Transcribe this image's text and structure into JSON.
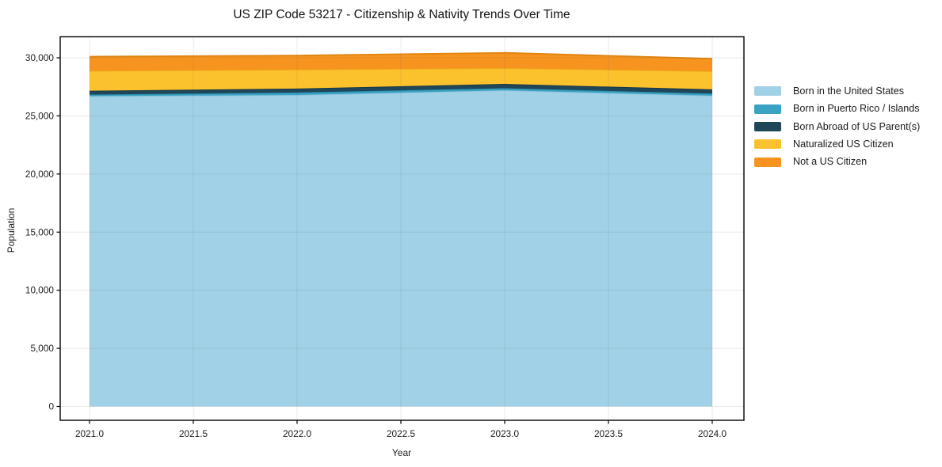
{
  "title": "US ZIP Code 53217 - Citizenship & Nativity Trends Over Time",
  "chart_data": {
    "type": "area",
    "stacked": true,
    "title": "US ZIP Code 53217 - Citizenship & Nativity Trends Over Time",
    "xlabel": "Year",
    "ylabel": "Population",
    "x": [
      2021,
      2022,
      2023,
      2024
    ],
    "xlim": [
      2020.86,
      2024.15
    ],
    "ylim": [
      0,
      31500
    ],
    "grid": true,
    "legend_position": "outside-right-top",
    "x_tick_values": [
      2021.0,
      2021.5,
      2022.0,
      2022.5,
      2023.0,
      2023.5,
      2024.0
    ],
    "x_tick_labels": [
      "2021.0",
      "2021.5",
      "2022.0",
      "2022.5",
      "2023.0",
      "2023.5",
      "2024.0"
    ],
    "y_tick_values": [
      0,
      5000,
      10000,
      15000,
      20000,
      25000,
      30000
    ],
    "y_tick_labels": [
      "0",
      "5,000",
      "10,000",
      "15,000",
      "20,000",
      "25,000",
      "30,000"
    ],
    "series": [
      {
        "name": "Born in the United States",
        "color": "#A1D1E6",
        "edge": "#8CC2DB",
        "values": [
          26700,
          26800,
          27200,
          26740
        ]
      },
      {
        "name": "Born in Puerto Rico / Islands",
        "color": "#3AA2C3",
        "edge": "#2C92B3",
        "values": [
          130,
          210,
          180,
          185
        ]
      },
      {
        "name": "Born Abroad of US Parent(s)",
        "color": "#1F4659",
        "edge": "#173849",
        "values": [
          340,
          340,
          370,
          360
        ]
      },
      {
        "name": "Naturalized US Citizen",
        "color": "#FCC22D",
        "edge": "#EBAE17",
        "values": [
          1700,
          1630,
          1360,
          1560
        ]
      },
      {
        "name": "Not a US Citizen",
        "color": "#F79420",
        "edge": "#E0830F",
        "values": [
          1230,
          1220,
          1320,
          1070
        ]
      }
    ],
    "totals": [
      30100,
      30200,
      30430,
      29915
    ]
  },
  "colors": {
    "background": "#ffffff",
    "spine": "#000000",
    "gridline": "#e9e9e9",
    "text": "#1c1c1c"
  }
}
